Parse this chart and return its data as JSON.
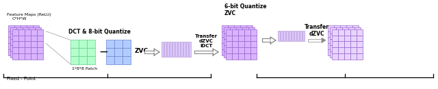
{
  "bg_color": "#ffffff",
  "purple_fill": "#d9b3ff",
  "purple_border": "#9966cc",
  "purple_light": "#e8d5ff",
  "green_fill": "#b3ffcc",
  "green_border": "#66cc88",
  "blue_fill": "#b3ccff",
  "blue_border": "#6688cc",
  "compressed_fill": "#ddc8ff",
  "compressed_border": "#aa88cc",
  "arrow_color": "#666666",
  "text_color": "#000000",
  "label_feature": "Feature Maps (ReLU)\n  C*H*W",
  "label_dct": "DCT & 8-bit Quantize",
  "label_patch": "1*8*8 Patch",
  "label_zvc": "ZVC",
  "label_transfer1": "Transfer\ndZVC\niDCT",
  "label_6bit": "6-bit Quantize\nZVC",
  "label_transfer2": "Transfer\ndZVC",
  "label_fixed": "Fixed - Point"
}
